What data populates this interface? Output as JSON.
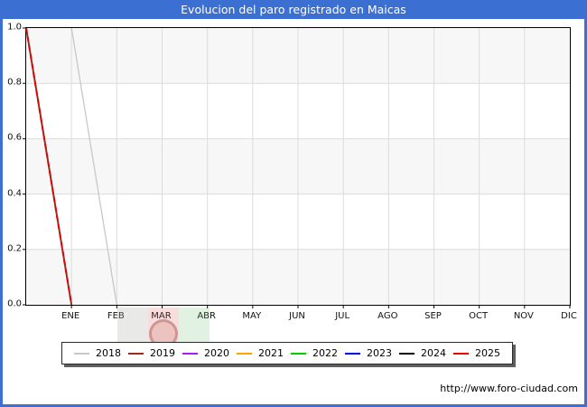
{
  "title_bar": {
    "text": "Evolucion del paro registrado en Maicas",
    "bg": "#3b70d2",
    "fg": "#ffffff"
  },
  "watermark_url": "http://www.foro-ciudad.com",
  "icons": {
    "logo_watermark": "foro-ciudad-flag-crest"
  },
  "chart_data": {
    "type": "line",
    "title": "Evolucion del paro registrado en Maicas",
    "categories": [
      "ENE",
      "FEB",
      "MAR",
      "ABR",
      "MAY",
      "JUN",
      "JUL",
      "AGO",
      "SEP",
      "OCT",
      "NOV",
      "DIC"
    ],
    "xlim": [
      0,
      12
    ],
    "ylim": [
      0.0,
      1.0
    ],
    "yticks": [
      0.0,
      0.2,
      0.4,
      0.6,
      0.8,
      1.0
    ],
    "grid": true,
    "gridline_color": "#dcdcdc",
    "band_colors": [
      "#f7f7f7",
      "#ffffff"
    ],
    "legend_position": "bottom",
    "series": [
      {
        "name": "2018",
        "color": "#c8c8c8",
        "dash": "solid",
        "width": 1.3,
        "points": [
          [
            1,
            1.0
          ],
          [
            2,
            0.0
          ]
        ]
      },
      {
        "name": "2019",
        "color": "#9b2a24",
        "dash": "solid",
        "width": 2.0,
        "points": [
          [
            0,
            1.0
          ],
          [
            1,
            0.0
          ]
        ]
      },
      {
        "name": "2020",
        "color": "#a020f0",
        "dash": "solid",
        "width": 2.0,
        "points": []
      },
      {
        "name": "2021",
        "color": "#ffa500",
        "dash": "solid",
        "width": 2.0,
        "points": []
      },
      {
        "name": "2022",
        "color": "#00cc00",
        "dash": "solid",
        "width": 2.0,
        "points": []
      },
      {
        "name": "2023",
        "color": "#0000e8",
        "dash": "solid",
        "width": 2.0,
        "points": []
      },
      {
        "name": "2024",
        "color": "#000000",
        "dash": "solid",
        "width": 2.0,
        "points": []
      },
      {
        "name": "2025",
        "color": "#e60000",
        "dash": "dashed",
        "width": 2.0,
        "points": [
          [
            0,
            1.0
          ],
          [
            1,
            0.0
          ]
        ]
      }
    ]
  }
}
